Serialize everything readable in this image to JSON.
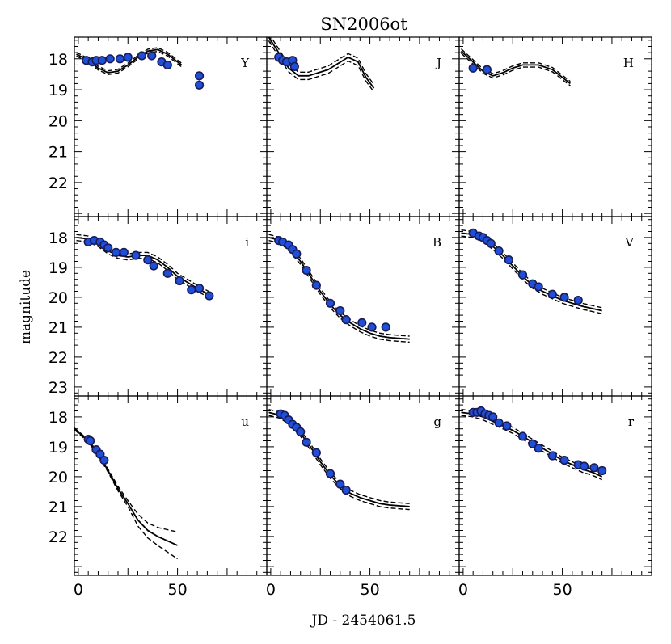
{
  "chart_data": {
    "type": "scatter",
    "title": "SN2006ot",
    "xlabel": "JD - 2454061.5",
    "ylabel": "magnitude",
    "xlim": [
      -2,
      95
    ],
    "x_ticks": [
      0,
      50
    ],
    "y_reversed": true,
    "rows": [
      {
        "ylim": [
          23.1,
          17.3
        ],
        "y_ticks": [
          18,
          19,
          20,
          21,
          22
        ]
      },
      {
        "ylim": [
          23.3,
          17.3
        ],
        "y_ticks": [
          18,
          19,
          20,
          21,
          22,
          23
        ]
      },
      {
        "ylim": [
          23.3,
          17.3
        ],
        "y_ticks": [
          18,
          19,
          20,
          21,
          22
        ]
      }
    ],
    "panels": [
      {
        "band": "Y",
        "row": 0,
        "col": 0,
        "points": [
          [
            4,
            18.05
          ],
          [
            7,
            18.1
          ],
          [
            9,
            18.05
          ],
          [
            12,
            18.05
          ],
          [
            16,
            18.0
          ],
          [
            21,
            18.0
          ],
          [
            25,
            17.95
          ],
          [
            32,
            17.9
          ],
          [
            37,
            17.9
          ],
          [
            42,
            18.1
          ],
          [
            45,
            18.2
          ],
          [
            61,
            18.55
          ],
          [
            61,
            18.85
          ]
        ],
        "model": [
          [
            -1,
            17.85
          ],
          [
            5,
            18.05
          ],
          [
            10,
            18.3
          ],
          [
            15,
            18.45
          ],
          [
            20,
            18.4
          ],
          [
            25,
            18.2
          ],
          [
            30,
            17.95
          ],
          [
            35,
            17.75
          ],
          [
            40,
            17.7
          ],
          [
            45,
            17.85
          ],
          [
            52,
            18.2
          ]
        ],
        "band_offset": 0.06
      },
      {
        "band": "J",
        "row": 0,
        "col": 1,
        "points": [
          [
            4,
            17.95
          ],
          [
            6,
            18.05
          ],
          [
            8,
            18.1
          ],
          [
            11,
            18.05
          ],
          [
            12,
            18.25
          ]
        ],
        "model": [
          [
            -1,
            17.3
          ],
          [
            4,
            17.8
          ],
          [
            9,
            18.3
          ],
          [
            14,
            18.55
          ],
          [
            19,
            18.55
          ],
          [
            24,
            18.45
          ],
          [
            29,
            18.35
          ],
          [
            34,
            18.15
          ],
          [
            39,
            17.95
          ],
          [
            44,
            18.1
          ],
          [
            48,
            18.6
          ],
          [
            52,
            18.95
          ]
        ],
        "band_offset": 0.12
      },
      {
        "band": "H",
        "row": 0,
        "col": 2,
        "points": [
          [
            5,
            18.3
          ],
          [
            12,
            18.35
          ]
        ],
        "model": [
          [
            -1,
            17.75
          ],
          [
            5,
            18.1
          ],
          [
            10,
            18.4
          ],
          [
            15,
            18.55
          ],
          [
            20,
            18.45
          ],
          [
            25,
            18.3
          ],
          [
            30,
            18.2
          ],
          [
            38,
            18.2
          ],
          [
            45,
            18.35
          ],
          [
            50,
            18.6
          ],
          [
            54,
            18.8
          ]
        ],
        "band_offset": 0.07
      },
      {
        "band": "i",
        "row": 1,
        "col": 0,
        "points": [
          [
            5,
            18.15
          ],
          [
            8,
            18.1
          ],
          [
            11,
            18.15
          ],
          [
            13,
            18.25
          ],
          [
            15,
            18.35
          ],
          [
            19,
            18.5
          ],
          [
            23,
            18.5
          ],
          [
            29,
            18.6
          ],
          [
            35,
            18.75
          ],
          [
            38,
            18.95
          ],
          [
            45,
            19.2
          ],
          [
            51,
            19.45
          ],
          [
            57,
            19.75
          ],
          [
            61,
            19.7
          ],
          [
            66,
            19.95
          ]
        ],
        "model": [
          [
            -1,
            18.0
          ],
          [
            5,
            18.05
          ],
          [
            10,
            18.2
          ],
          [
            15,
            18.45
          ],
          [
            20,
            18.6
          ],
          [
            25,
            18.65
          ],
          [
            30,
            18.6
          ],
          [
            35,
            18.6
          ],
          [
            40,
            18.75
          ],
          [
            45,
            19.0
          ],
          [
            50,
            19.3
          ],
          [
            55,
            19.5
          ],
          [
            60,
            19.7
          ],
          [
            67,
            19.95
          ]
        ],
        "band_offset": 0.1
      },
      {
        "band": "B",
        "row": 1,
        "col": 1,
        "points": [
          [
            4,
            18.1
          ],
          [
            6,
            18.15
          ],
          [
            9,
            18.25
          ],
          [
            11,
            18.4
          ],
          [
            13,
            18.55
          ],
          [
            18,
            19.1
          ],
          [
            23,
            19.6
          ],
          [
            30,
            20.2
          ],
          [
            35,
            20.45
          ],
          [
            38,
            20.75
          ],
          [
            46,
            20.85
          ],
          [
            51,
            21.0
          ],
          [
            58,
            21.0
          ]
        ],
        "model": [
          [
            -1,
            18.0
          ],
          [
            5,
            18.1
          ],
          [
            10,
            18.4
          ],
          [
            15,
            18.8
          ],
          [
            20,
            19.3
          ],
          [
            25,
            19.8
          ],
          [
            30,
            20.25
          ],
          [
            35,
            20.6
          ],
          [
            40,
            20.85
          ],
          [
            45,
            21.05
          ],
          [
            50,
            21.2
          ],
          [
            55,
            21.3
          ],
          [
            60,
            21.35
          ],
          [
            70,
            21.4
          ]
        ],
        "band_offset": 0.1
      },
      {
        "band": "V",
        "row": 1,
        "col": 2,
        "points": [
          [
            5,
            17.85
          ],
          [
            8,
            17.95
          ],
          [
            10,
            18.0
          ],
          [
            12,
            18.1
          ],
          [
            14,
            18.2
          ],
          [
            18,
            18.45
          ],
          [
            23,
            18.75
          ],
          [
            30,
            19.25
          ],
          [
            35,
            19.55
          ],
          [
            38,
            19.65
          ],
          [
            45,
            19.9
          ],
          [
            51,
            20.0
          ],
          [
            58,
            20.1
          ]
        ],
        "model": [
          [
            -1,
            17.85
          ],
          [
            5,
            17.9
          ],
          [
            10,
            18.05
          ],
          [
            15,
            18.3
          ],
          [
            20,
            18.6
          ],
          [
            25,
            18.95
          ],
          [
            30,
            19.3
          ],
          [
            35,
            19.6
          ],
          [
            40,
            19.8
          ],
          [
            45,
            19.95
          ],
          [
            50,
            20.1
          ],
          [
            55,
            20.2
          ],
          [
            60,
            20.3
          ],
          [
            70,
            20.45
          ]
        ],
        "band_offset": 0.1
      },
      {
        "band": "u",
        "row": 2,
        "col": 0,
        "points": [
          [
            5,
            18.75
          ],
          [
            6,
            18.8
          ],
          [
            9,
            19.1
          ],
          [
            11,
            19.25
          ],
          [
            13,
            19.45
          ]
        ],
        "model": [
          [
            -2,
            18.4
          ],
          [
            5,
            18.8
          ],
          [
            10,
            19.25
          ],
          [
            15,
            19.8
          ],
          [
            20,
            20.4
          ],
          [
            25,
            20.9
          ],
          [
            30,
            21.45
          ],
          [
            35,
            21.8
          ],
          [
            40,
            22.0
          ],
          [
            45,
            22.15
          ],
          [
            50,
            22.3
          ]
        ],
        "band_offset_profile": [
          [
            -2,
            0.03
          ],
          [
            15,
            0.05
          ],
          [
            25,
            0.1
          ],
          [
            30,
            0.2
          ],
          [
            40,
            0.3
          ],
          [
            50,
            0.45
          ]
        ]
      },
      {
        "band": "g",
        "row": 2,
        "col": 1,
        "points": [
          [
            5,
            17.9
          ],
          [
            7,
            17.95
          ],
          [
            9,
            18.1
          ],
          [
            11,
            18.25
          ],
          [
            13,
            18.35
          ],
          [
            15,
            18.5
          ],
          [
            18,
            18.85
          ],
          [
            23,
            19.2
          ],
          [
            30,
            19.9
          ],
          [
            35,
            20.25
          ],
          [
            38,
            20.45
          ]
        ],
        "model": [
          [
            -1,
            17.85
          ],
          [
            5,
            17.95
          ],
          [
            10,
            18.2
          ],
          [
            15,
            18.55
          ],
          [
            20,
            19.0
          ],
          [
            25,
            19.5
          ],
          [
            30,
            19.95
          ],
          [
            35,
            20.3
          ],
          [
            40,
            20.55
          ],
          [
            45,
            20.7
          ],
          [
            50,
            20.8
          ],
          [
            55,
            20.9
          ],
          [
            60,
            20.95
          ],
          [
            70,
            21.0
          ]
        ],
        "band_offset": 0.1
      },
      {
        "band": "r",
        "row": 2,
        "col": 2,
        "points": [
          [
            5,
            17.85
          ],
          [
            7,
            17.85
          ],
          [
            9,
            17.8
          ],
          [
            11,
            17.9
          ],
          [
            13,
            17.95
          ],
          [
            15,
            18.0
          ],
          [
            18,
            18.2
          ],
          [
            22,
            18.3
          ],
          [
            30,
            18.65
          ],
          [
            35,
            18.9
          ],
          [
            38,
            19.05
          ],
          [
            45,
            19.3
          ],
          [
            51,
            19.45
          ],
          [
            58,
            19.6
          ],
          [
            61,
            19.65
          ],
          [
            66,
            19.7
          ],
          [
            70,
            19.8
          ]
        ],
        "model": [
          [
            -1,
            17.85
          ],
          [
            5,
            17.9
          ],
          [
            10,
            18.0
          ],
          [
            15,
            18.15
          ],
          [
            20,
            18.3
          ],
          [
            25,
            18.45
          ],
          [
            30,
            18.65
          ],
          [
            35,
            18.85
          ],
          [
            40,
            19.05
          ],
          [
            45,
            19.25
          ],
          [
            50,
            19.45
          ],
          [
            55,
            19.6
          ],
          [
            60,
            19.75
          ],
          [
            65,
            19.85
          ],
          [
            70,
            20.0
          ]
        ],
        "band_offset": 0.1
      }
    ]
  }
}
